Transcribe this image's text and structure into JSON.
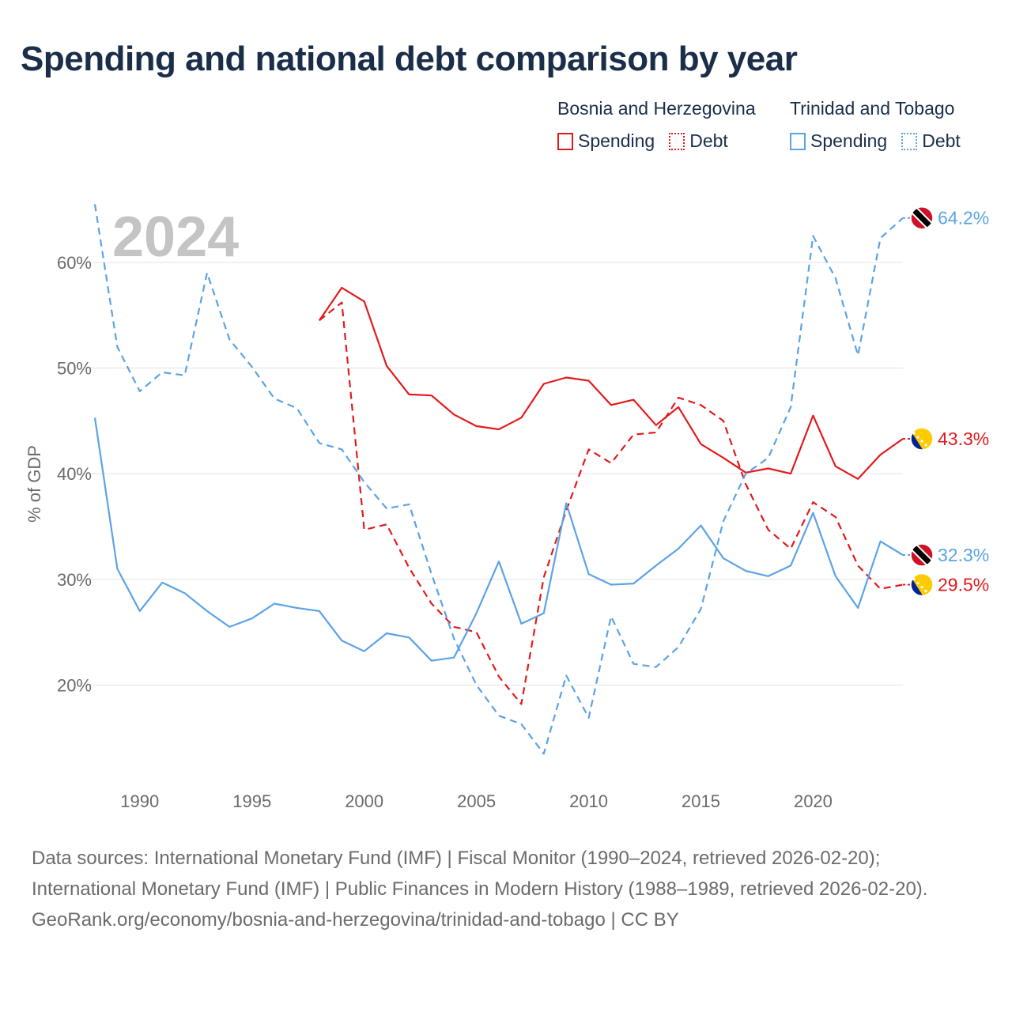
{
  "title": "Spending and national debt comparison by year",
  "legend": {
    "groups": [
      {
        "name": "Bosnia and Herzegovina",
        "color": "#e31a1c",
        "items": [
          "Spending",
          "Debt"
        ]
      },
      {
        "name": "Trinidad and Tobago",
        "color": "#5ba3e6",
        "items": [
          "Spending",
          "Debt"
        ]
      }
    ]
  },
  "chart_data": {
    "type": "line",
    "title": "Spending and national debt comparison by year",
    "ylabel": "% of GDP",
    "xlabel": "",
    "year_label": "2024",
    "xlim": [
      1988,
      2024
    ],
    "ylim": [
      13,
      65
    ],
    "x_ticks": [
      1990,
      1995,
      2000,
      2005,
      2010,
      2015,
      2020
    ],
    "y_ticks": [
      20,
      30,
      40,
      50,
      60
    ],
    "y_tick_labels": [
      "20%",
      "30%",
      "40%",
      "50%",
      "60%"
    ],
    "series": [
      {
        "name": "Bosnia and Herzegovina Spending",
        "style": "solid",
        "color": "#e31a1c",
        "x": [
          1998,
          1999,
          2000,
          2001,
          2002,
          2003,
          2004,
          2005,
          2006,
          2007,
          2008,
          2009,
          2010,
          2011,
          2012,
          2013,
          2014,
          2015,
          2016,
          2017,
          2018,
          2019,
          2020,
          2021,
          2022,
          2023,
          2024
        ],
        "values": [
          54.5,
          57.6,
          56.3,
          50.2,
          47.5,
          47.4,
          45.6,
          44.5,
          44.2,
          45.3,
          48.5,
          49.1,
          48.8,
          46.5,
          47.0,
          44.6,
          46.3,
          42.8,
          41.5,
          40.1,
          40.5,
          40.0,
          45.5,
          40.7,
          39.5,
          41.8,
          43.3
        ],
        "end_label": "43.3%",
        "flag": "bosnia"
      },
      {
        "name": "Bosnia and Herzegovina Debt",
        "style": "dashed",
        "color": "#e31a1c",
        "x": [
          1998,
          1999,
          2000,
          2001,
          2002,
          2003,
          2004,
          2005,
          2006,
          2007,
          2008,
          2009,
          2010,
          2011,
          2012,
          2013,
          2014,
          2015,
          2016,
          2017,
          2018,
          2019,
          2020,
          2021,
          2022,
          2023,
          2024
        ],
        "values": [
          54.5,
          56.2,
          34.7,
          35.2,
          31.1,
          27.7,
          25.5,
          25.0,
          20.8,
          18.2,
          30.2,
          36.5,
          42.3,
          41.0,
          43.7,
          43.9,
          47.2,
          46.5,
          45.0,
          39.0,
          34.7,
          32.9,
          37.3,
          35.9,
          31.3,
          29.1,
          29.5
        ],
        "end_label": "29.5%",
        "flag": "bosnia"
      },
      {
        "name": "Trinidad and Tobago Spending",
        "style": "solid",
        "color": "#5ba3e6",
        "x": [
          1988,
          1989,
          1990,
          1991,
          1992,
          1993,
          1994,
          1995,
          1996,
          1997,
          1998,
          1999,
          2000,
          2001,
          2002,
          2003,
          2004,
          2005,
          2006,
          2007,
          2008,
          2009,
          2010,
          2011,
          2012,
          2013,
          2014,
          2015,
          2016,
          2017,
          2018,
          2019,
          2020,
          2021,
          2022,
          2023,
          2024
        ],
        "values": [
          45.3,
          31.0,
          27.0,
          29.7,
          28.7,
          27.0,
          25.5,
          26.3,
          27.7,
          27.3,
          27.0,
          24.2,
          23.2,
          24.9,
          24.5,
          22.3,
          22.6,
          26.8,
          31.7,
          25.8,
          26.8,
          37.2,
          30.5,
          29.5,
          29.6,
          31.3,
          32.9,
          35.1,
          32.0,
          30.8,
          30.3,
          31.3,
          36.3,
          30.3,
          27.3,
          33.6,
          32.3
        ],
        "end_label": "32.3%",
        "flag": "trinidad"
      },
      {
        "name": "Trinidad and Tobago Debt",
        "style": "dashed",
        "color": "#5ba3e6",
        "x": [
          1988,
          1989,
          1990,
          1991,
          1992,
          1993,
          1994,
          1995,
          1996,
          1997,
          1998,
          1999,
          2000,
          2001,
          2002,
          2003,
          2004,
          2005,
          2006,
          2007,
          2008,
          2009,
          2010,
          2011,
          2012,
          2013,
          2014,
          2015,
          2016,
          2017,
          2018,
          2019,
          2020,
          2021,
          2022,
          2023,
          2024
        ],
        "values": [
          65.5,
          52.0,
          47.8,
          49.6,
          49.3,
          59.0,
          52.7,
          50.1,
          47.1,
          46.2,
          42.9,
          42.3,
          39.2,
          36.7,
          37.1,
          30.5,
          24.4,
          20.0,
          17.1,
          16.3,
          13.5,
          20.9,
          16.9,
          26.5,
          22.0,
          21.7,
          23.6,
          27.2,
          35.5,
          40.0,
          41.5,
          46.3,
          62.5,
          58.5,
          51.2,
          62.3,
          64.2
        ],
        "end_label": "64.2%",
        "flag": "trinidad"
      }
    ]
  },
  "sources": {
    "line1": "Data sources: International Monetary Fund (IMF) | Fiscal Monitor (1990–2024, retrieved 2026-02-20); International Monetary Fund (IMF) | Public Finances in Modern History (1988–1989, retrieved 2026-02-20).",
    "line2": "GeoRank.org/economy/bosnia-and-herzegovina/trinidad-and-tobago | CC BY"
  }
}
